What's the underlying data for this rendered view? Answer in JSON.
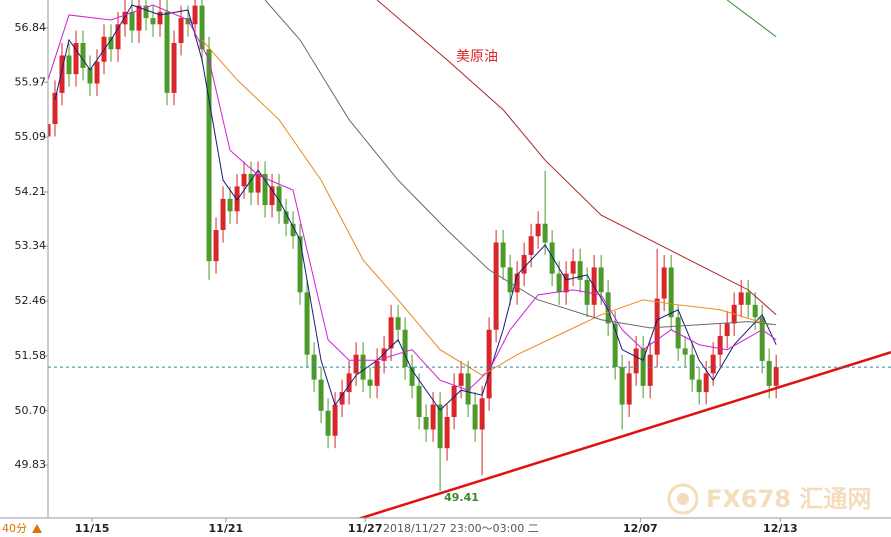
{
  "chart_data": {
    "type": "candlestick",
    "title": "美原油",
    "period_label": "40分",
    "crosshair_label": "2018/11/27 23:00～03:00 二",
    "watermark": "FX678 汇通网",
    "ylim": [
      48.98,
      57.29
    ],
    "yticks": [
      56.84,
      55.97,
      55.09,
      54.21,
      53.34,
      52.46,
      51.58,
      {
        "value": 50.7,
        "label": "50.70"
      },
      49.83
    ],
    "xlim": [
      0,
      120.4
    ],
    "xticks": [
      {
        "value": 6.3,
        "label": "11/15"
      },
      {
        "value": 25.4,
        "label": "11/21"
      },
      {
        "value": 45.3,
        "label": "11/27"
      },
      {
        "value": 84.6,
        "label": "12/07"
      },
      {
        "value": 104.6,
        "label": "12/13"
      }
    ],
    "up_color": "#d9262a",
    "down_color": "#4c9a2a",
    "candles": {
      "x": [
        0,
        1,
        2,
        3,
        4,
        5,
        6,
        7,
        8,
        9,
        10,
        11,
        12,
        13,
        14,
        15,
        16,
        17,
        18,
        19,
        20,
        21,
        22,
        23,
        24,
        25,
        26,
        27,
        28,
        29,
        30,
        31,
        32,
        33,
        34,
        35,
        36,
        37,
        38,
        39,
        40,
        41,
        42,
        43,
        44,
        45,
        46,
        47,
        48,
        49,
        50,
        51,
        52,
        53,
        54,
        55,
        56,
        57,
        58,
        59,
        60,
        61,
        62,
        63,
        64,
        65,
        66,
        67,
        68,
        69,
        70,
        71,
        72,
        73,
        74,
        75,
        76,
        77,
        78,
        79,
        80,
        81,
        82,
        83,
        84,
        85,
        86,
        87,
        88,
        89,
        90,
        91,
        92,
        93,
        94,
        95,
        96,
        97,
        98,
        99,
        100,
        101,
        102,
        103,
        104
      ],
      "open": [
        55.1,
        55.3,
        55.8,
        56.4,
        56.1,
        56.6,
        56.2,
        55.95,
        56.3,
        56.7,
        56.5,
        56.9,
        57.1,
        56.8,
        57.2,
        57.0,
        56.9,
        57.1,
        55.8,
        56.6,
        57.0,
        56.9,
        57.2,
        56.5,
        53.1,
        53.6,
        54.1,
        53.9,
        54.3,
        54.5,
        54.2,
        54.5,
        54.0,
        54.3,
        53.9,
        53.7,
        53.5,
        52.6,
        51.6,
        51.2,
        50.7,
        50.3,
        50.8,
        51.0,
        51.3,
        51.6,
        51.2,
        51.1,
        51.5,
        51.7,
        52.2,
        52.0,
        51.4,
        51.1,
        50.6,
        50.4,
        50.8,
        50.1,
        50.6,
        51.1,
        51.3,
        50.8,
        50.4,
        50.9,
        52.0,
        53.4,
        53.0,
        52.6,
        52.9,
        53.2,
        53.5,
        53.7,
        53.4,
        52.9,
        52.6,
        52.9,
        53.1,
        52.8,
        52.4,
        53.0,
        52.6,
        52.1,
        51.4,
        50.8,
        51.3,
        51.7,
        51.1,
        51.6,
        52.5,
        53.0,
        52.2,
        51.7,
        51.6,
        51.2,
        51.0,
        51.3,
        51.6,
        51.9,
        52.1,
        52.4,
        52.6,
        52.4,
        52.2,
        51.5,
        51.1
      ],
      "high": [
        55.5,
        56.0,
        56.6,
        56.6,
        56.8,
        56.8,
        56.4,
        56.5,
        56.9,
        56.9,
        57.1,
        57.3,
        57.3,
        57.4,
        57.4,
        57.2,
        57.3,
        57.3,
        56.8,
        57.2,
        57.2,
        57.4,
        57.4,
        56.7,
        53.8,
        54.3,
        54.3,
        54.5,
        54.7,
        54.7,
        54.7,
        54.7,
        54.5,
        54.5,
        54.1,
        53.9,
        53.7,
        52.8,
        51.8,
        51.4,
        50.9,
        51.0,
        51.2,
        51.5,
        51.8,
        51.8,
        51.4,
        51.7,
        51.9,
        52.4,
        52.4,
        52.2,
        51.6,
        51.3,
        50.8,
        51.0,
        51.0,
        50.8,
        51.3,
        51.5,
        51.5,
        51.0,
        51.1,
        52.2,
        53.6,
        53.6,
        53.2,
        53.1,
        53.4,
        53.7,
        53.9,
        54.55,
        53.6,
        53.1,
        53.1,
        53.3,
        53.3,
        53.0,
        53.2,
        53.2,
        52.8,
        52.3,
        51.6,
        51.5,
        51.9,
        51.9,
        51.8,
        53.3,
        53.2,
        53.2,
        52.4,
        51.9,
        51.8,
        51.4,
        51.5,
        51.8,
        52.1,
        52.3,
        52.6,
        52.8,
        52.8,
        52.6,
        52.4,
        51.7,
        51.6
      ],
      "low": [
        54.9,
        55.1,
        55.6,
        55.9,
        55.9,
        56.0,
        55.75,
        55.75,
        56.1,
        56.3,
        56.3,
        56.7,
        56.6,
        56.6,
        56.8,
        56.7,
        56.7,
        55.6,
        55.6,
        56.4,
        56.7,
        56.7,
        56.3,
        52.8,
        52.9,
        53.4,
        53.7,
        53.7,
        54.1,
        54.0,
        54.0,
        53.8,
        53.8,
        53.7,
        53.5,
        53.3,
        52.4,
        51.4,
        51.0,
        50.5,
        50.1,
        50.1,
        50.6,
        50.8,
        51.1,
        51.0,
        50.9,
        50.9,
        51.3,
        51.5,
        51.8,
        51.2,
        50.9,
        50.4,
        50.2,
        50.2,
        49.41,
        49.9,
        50.4,
        50.9,
        50.6,
        50.2,
        49.67,
        50.7,
        51.8,
        52.8,
        52.4,
        52.4,
        52.7,
        53.0,
        53.3,
        53.2,
        52.7,
        52.4,
        52.4,
        52.7,
        52.6,
        52.2,
        52.2,
        52.4,
        51.9,
        51.2,
        50.4,
        50.6,
        51.1,
        50.9,
        50.9,
        51.4,
        52.3,
        52.0,
        51.5,
        51.4,
        51.0,
        50.8,
        50.8,
        51.1,
        51.4,
        51.7,
        51.9,
        52.2,
        52.2,
        52.0,
        51.3,
        50.9,
        50.9
      ],
      "close": [
        55.3,
        55.8,
        56.4,
        56.1,
        56.6,
        56.2,
        55.95,
        56.3,
        56.7,
        56.5,
        56.9,
        57.1,
        56.8,
        57.2,
        57.0,
        56.9,
        57.1,
        55.8,
        56.6,
        57.0,
        56.9,
        57.2,
        56.5,
        53.1,
        53.6,
        54.1,
        53.9,
        54.3,
        54.5,
        54.2,
        54.5,
        54.0,
        54.3,
        53.9,
        53.7,
        53.5,
        52.6,
        51.6,
        51.2,
        50.7,
        50.3,
        50.8,
        51.0,
        51.3,
        51.6,
        51.2,
        51.1,
        51.5,
        51.7,
        52.2,
        52.0,
        51.4,
        51.1,
        50.6,
        50.4,
        50.8,
        50.1,
        50.6,
        51.1,
        51.3,
        50.8,
        50.4,
        50.9,
        52.0,
        53.4,
        53.0,
        52.6,
        52.9,
        53.2,
        53.5,
        53.7,
        53.4,
        52.9,
        52.6,
        52.9,
        53.1,
        52.8,
        52.4,
        53.0,
        52.6,
        52.1,
        51.4,
        50.8,
        51.3,
        51.7,
        51.1,
        51.6,
        52.5,
        53.0,
        52.2,
        51.7,
        51.6,
        51.2,
        51.0,
        51.3,
        51.6,
        51.9,
        52.1,
        52.4,
        52.6,
        52.4,
        52.2,
        51.5,
        51.1,
        51.4
      ]
    },
    "lines": [
      {
        "color": "#1a1a7a",
        "x": [
          1,
          3,
          6,
          9,
          12,
          16,
          20,
          22,
          25,
          27,
          30,
          33,
          36,
          39,
          41,
          44,
          47,
          50,
          52,
          56,
          59,
          62,
          65,
          67,
          71,
          74,
          77,
          80,
          82,
          85,
          87,
          90,
          93,
          95,
          98,
          102,
          104
        ],
        "values": [
          55.69,
          56.65,
          56.17,
          56.65,
          57.21,
          57.05,
          57.13,
          56.33,
          54.4,
          54.08,
          54.56,
          54.08,
          53.44,
          51.51,
          50.79,
          51.27,
          51.51,
          51.84,
          51.35,
          50.71,
          51.03,
          50.95,
          52.0,
          52.88,
          53.36,
          52.8,
          52.88,
          52.32,
          51.68,
          51.51,
          52.16,
          52.32,
          51.51,
          51.19,
          51.76,
          52.24,
          51.76
        ]
      },
      {
        "color": "#d020d0",
        "x": [
          0,
          3,
          9,
          15,
          20,
          23,
          26,
          30,
          35,
          37,
          40,
          43,
          47,
          52,
          56,
          60,
          63,
          66,
          70,
          75,
          79,
          82,
          85,
          89,
          93,
          97,
          102,
          104
        ],
        "values": [
          56.01,
          57.05,
          56.97,
          57.21,
          56.97,
          56.33,
          54.88,
          54.48,
          54.24,
          53.28,
          51.84,
          51.51,
          51.51,
          51.68,
          51.19,
          51.03,
          51.35,
          52.0,
          52.56,
          52.64,
          52.56,
          52.0,
          51.68,
          52.0,
          51.76,
          51.68,
          52.0,
          51.84
        ]
      },
      {
        "color": "#e88a1a",
        "x": [
          22,
          27,
          33,
          39,
          45,
          50,
          56,
          62,
          67,
          73,
          79,
          85,
          90,
          96,
          103
        ],
        "values": [
          56.65,
          56.01,
          55.37,
          54.4,
          53.12,
          52.48,
          51.68,
          51.27,
          51.6,
          51.92,
          52.24,
          52.48,
          52.4,
          52.32,
          52.08
        ]
      },
      {
        "color": "#6a6a6a",
        "x": [
          31,
          36,
          43,
          50,
          57,
          63,
          70,
          79,
          86,
          93,
          100,
          104
        ],
        "values": [
          57.29,
          56.65,
          55.37,
          54.4,
          53.6,
          52.96,
          52.48,
          52.16,
          52.03,
          52.08,
          52.13,
          52.08
        ]
      },
      {
        "color": "#b22222",
        "x": [
          47,
          57,
          65,
          71,
          79,
          86,
          93,
          100,
          104
        ],
        "values": [
          57.29,
          56.33,
          55.53,
          54.72,
          53.84,
          53.44,
          53.04,
          52.64,
          52.24
        ]
      },
      {
        "color": "#2e8b2e",
        "x": [
          97,
          104
        ],
        "values": [
          57.29,
          56.7
        ]
      }
    ],
    "trendline": {
      "color": "#e01010",
      "x": [
        43.9,
        120.4
      ],
      "values": [
        48.95,
        51.64
      ]
    },
    "price_line": 51.4
  }
}
